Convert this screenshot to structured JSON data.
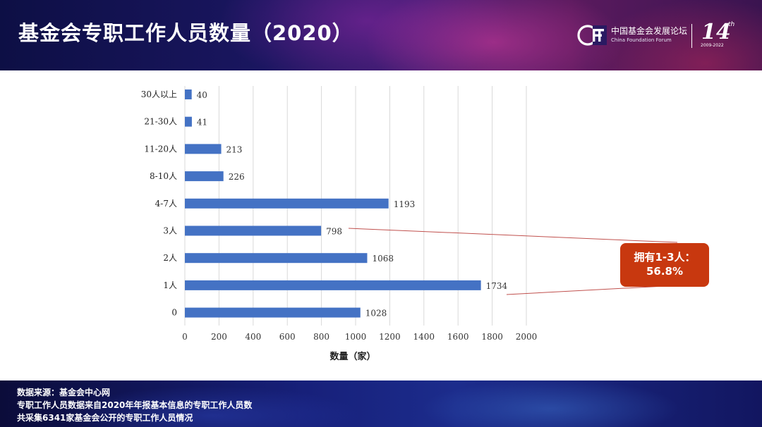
{
  "header": {
    "title": "基金会专职工作人员数量（2020）",
    "logo_cn": "中国基金会发展论坛",
    "logo_en": "China Foundation Forum",
    "logo_number": "14",
    "logo_suffix": "th",
    "logo_years": "2009-2022"
  },
  "chart_data": {
    "type": "bar",
    "orientation": "horizontal",
    "categories": [
      "30人以上",
      "21-30人",
      "11-20人",
      "8-10人",
      "4-7人",
      "3人",
      "2人",
      "1人",
      "0"
    ],
    "values": [
      40,
      41,
      213,
      226,
      1193,
      798,
      1068,
      1734,
      1028
    ],
    "xlabel": "数量（家）",
    "xlim": [
      0,
      2000
    ],
    "xticks": [
      0,
      200,
      400,
      600,
      800,
      1000,
      1200,
      1400,
      1600,
      1800,
      2000
    ],
    "grid": "vertical",
    "bar_color": "#4472c4"
  },
  "annotation": {
    "line1": "拥有1-3人：",
    "line2": "56.8%",
    "color": "#c8380f"
  },
  "footer": {
    "line1": "数据来源：基金会中心网",
    "line2": "专职工作人员数据来自2020年年报基本信息的专职工作人员数",
    "line3": "共采集6341家基金会公开的专职工作人员情况"
  }
}
